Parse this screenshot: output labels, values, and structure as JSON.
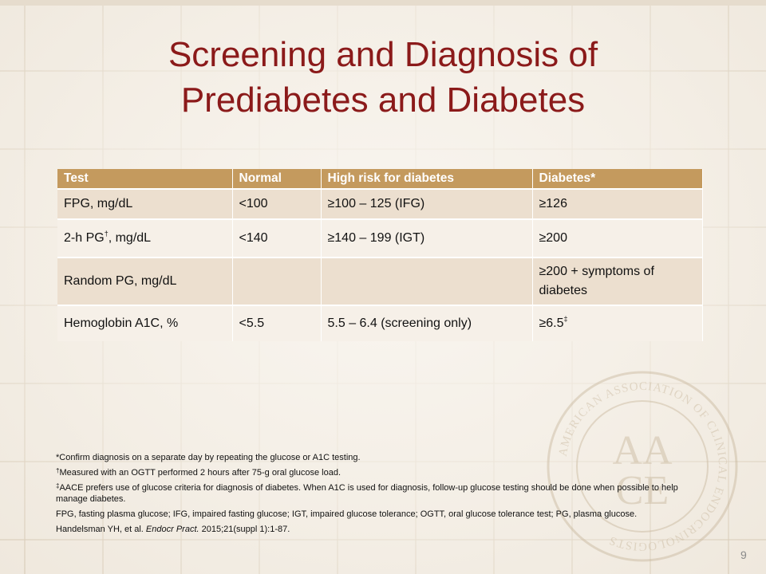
{
  "slide": {
    "title_line1": "Screening and Diagnosis of",
    "title_line2": "Prediabetes and Diabetes",
    "page_number": "9",
    "accent_color": "#8b1a1a",
    "header_color": "#c49a5e"
  },
  "table": {
    "headers": [
      "Test",
      "Normal",
      "High risk for diabetes",
      "Diabetes*"
    ],
    "rows": [
      {
        "test": "FPG, mg/dL",
        "normal": "<100",
        "high_risk": "≥100 – 125 (IFG)",
        "diabetes": "≥126"
      },
      {
        "test_pre": "2-h PG",
        "test_mark": "†",
        "test_post": ", mg/dL",
        "normal": "<140",
        "high_risk": "≥140 – 199 (IGT)",
        "diabetes": "≥200"
      },
      {
        "test": "Random PG, mg/dL",
        "normal": "",
        "high_risk": "",
        "diabetes": "≥200 + symptoms of diabetes"
      },
      {
        "test": "Hemoglobin A1C, %",
        "normal": "<5.5",
        "high_risk": "5.5 – 6.4 (screening only)",
        "diabetes_pre": "≥6.5",
        "diabetes_mark": "‡"
      }
    ]
  },
  "footnotes": {
    "confirm": "*Confirm diagnosis on a separate day by repeating the glucose or A1C testing.",
    "ogtt_mark": "†",
    "ogtt": "Measured with an OGTT performed 2 hours after 75-g oral glucose load.",
    "aace_mark": "‡",
    "aace": "AACE prefers use of glucose criteria for diagnosis of diabetes. When A1C is used for diagnosis, follow-up glucose testing should be done when possible to help manage diabetes.",
    "abbreviations": "FPG, fasting plasma glucose; IFG, impaired fasting glucose; IGT, impaired glucose tolerance; OGTT, oral glucose tolerance test; PG, plasma glucose.",
    "citation_authors": "Handelsman YH, et al. ",
    "citation_journal": "Endocr Pract.",
    "citation_rest": " 2015;21(suppl 1):1-87."
  },
  "logo": {
    "ring_text": "AMERICAN ASSOCIATION OF CLINICAL ENDOCRINOLOGISTS",
    "monogram_top": "AA",
    "monogram_bottom": "CE"
  },
  "icons": [
    "aace-seal-icon"
  ]
}
